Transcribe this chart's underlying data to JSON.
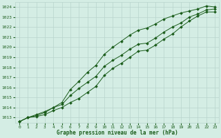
{
  "hours": [
    0,
    1,
    2,
    3,
    4,
    5,
    6,
    7,
    8,
    9,
    10,
    11,
    12,
    13,
    14,
    15,
    16,
    17,
    18,
    19,
    20,
    21,
    22,
    23
  ],
  "line_high": [
    1012.6,
    1013.0,
    1013.2,
    1013.5,
    1014.0,
    1014.5,
    1015.8,
    1016.6,
    1017.5,
    1018.2,
    1019.3,
    1020.0,
    1020.6,
    1021.2,
    1021.7,
    1021.9,
    1022.3,
    1022.8,
    1023.1,
    1023.4,
    1023.6,
    1023.8,
    1024.1,
    1024.0
  ],
  "line_mid": [
    1012.6,
    1013.0,
    1013.3,
    1013.6,
    1014.0,
    1014.3,
    1015.2,
    1015.9,
    1016.5,
    1017.1,
    1018.1,
    1018.7,
    1019.2,
    1019.8,
    1020.3,
    1020.4,
    1020.9,
    1021.5,
    1022.0,
    1022.4,
    1023.0,
    1023.3,
    1023.7,
    1023.8
  ],
  "line_low": [
    1012.6,
    1013.0,
    1013.1,
    1013.3,
    1013.7,
    1014.0,
    1014.5,
    1014.9,
    1015.5,
    1016.1,
    1017.2,
    1017.9,
    1018.4,
    1019.0,
    1019.6,
    1019.7,
    1020.2,
    1020.8,
    1021.3,
    1022.0,
    1022.6,
    1023.1,
    1023.5,
    1023.5
  ],
  "line_color": "#1a5c1a",
  "marker_color": "#1a5c1a",
  "bg_color": "#d4ede4",
  "grid_color": "#b8d4cc",
  "text_color": "#1a5c1a",
  "xlabel": "Graphe pression niveau de la mer (hPa)",
  "ylim": [
    1012.5,
    1024.5
  ],
  "xlim": [
    -0.5,
    23.5
  ],
  "yticks": [
    1013,
    1014,
    1015,
    1016,
    1017,
    1018,
    1019,
    1020,
    1021,
    1022,
    1023,
    1024
  ],
  "xticks": [
    0,
    1,
    2,
    3,
    4,
    5,
    6,
    7,
    8,
    9,
    10,
    11,
    12,
    13,
    14,
    15,
    16,
    17,
    18,
    19,
    20,
    21,
    22,
    23
  ]
}
